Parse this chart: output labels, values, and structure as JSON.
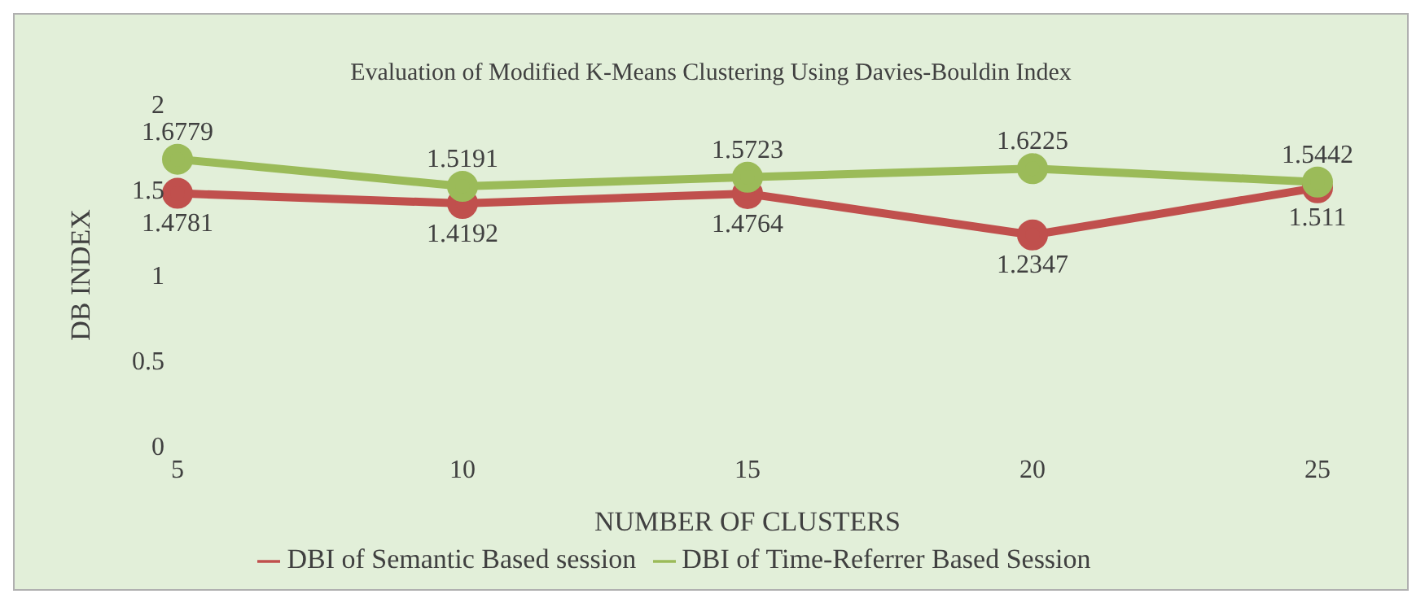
{
  "chart_data": {
    "type": "line",
    "title": "Evaluation of Modified K-Means Clustering Using Davies-Bouldin Index",
    "xlabel": "NUMBER OF CLUSTERS",
    "ylabel": "DB INDEX",
    "categories": [
      "5",
      "10",
      "15",
      "20",
      "25"
    ],
    "series": [
      {
        "name": "DBI of Semantic Based session",
        "color": "#c0504d",
        "values": [
          1.4781,
          1.4192,
          1.4764,
          1.2347,
          1.511
        ]
      },
      {
        "name": "DBI of Time-Referrer Based Session",
        "color": "#9bbb59",
        "values": [
          1.6779,
          1.5191,
          1.5723,
          1.6225,
          1.5442
        ]
      }
    ],
    "ylim": [
      0,
      2
    ],
    "yticks": [
      0,
      0.5,
      1,
      1.5,
      2
    ],
    "grid": false,
    "legend": "bottom",
    "marker": "circle",
    "line_style": "solid",
    "data_labels": true
  }
}
